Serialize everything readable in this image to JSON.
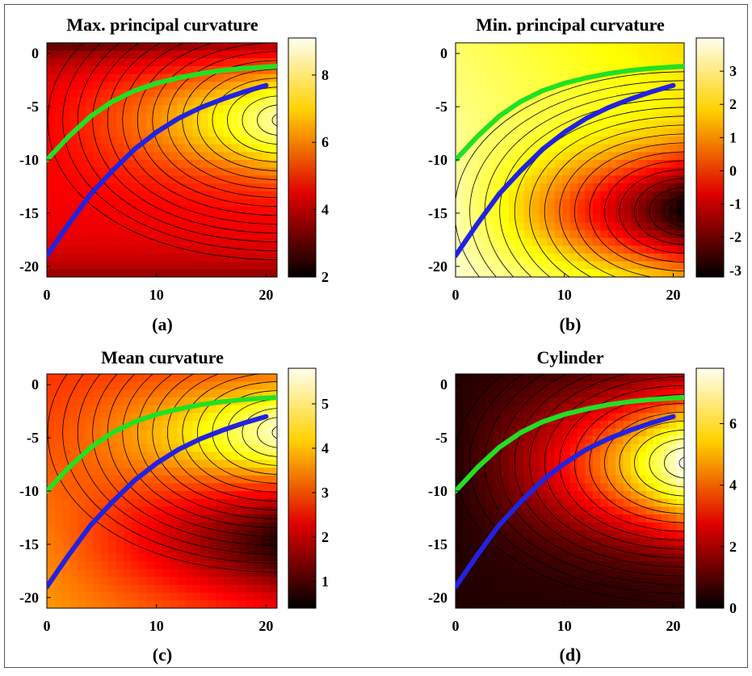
{
  "chart_data": [
    {
      "type": "heatmap",
      "title": "Max. principal curvature",
      "caption": "(a)",
      "xlim": [
        0,
        21
      ],
      "ylim": [
        -21,
        1
      ],
      "xticks": [
        "0",
        "10",
        "20"
      ],
      "yticks": [
        "0",
        "-5",
        "-10",
        "-15",
        "-20"
      ],
      "colorbar": {
        "range": [
          2,
          9.1
        ],
        "ticks": [
          "8",
          "6",
          "4",
          "2"
        ]
      },
      "colormap": "hot",
      "contours": true,
      "series": [
        {
          "color": "#22e022",
          "x": [
            0,
            2,
            4,
            6,
            8,
            10,
            12,
            14,
            16,
            18,
            21
          ],
          "y": [
            -10,
            -7.8,
            -5.9,
            -4.5,
            -3.5,
            -2.8,
            -2.3,
            -1.9,
            -1.6,
            -1.4,
            -1.2
          ]
        },
        {
          "color": "#2222e0",
          "x": [
            0,
            2,
            4,
            6,
            8,
            10,
            12,
            14,
            16,
            18,
            20
          ],
          "y": [
            -19,
            -16,
            -13.2,
            -11,
            -9,
            -7.4,
            -6.1,
            -5.1,
            -4.3,
            -3.6,
            -3
          ]
        }
      ]
    },
    {
      "type": "heatmap",
      "title": "Min. principal curvature",
      "caption": "(b)",
      "xlim": [
        0,
        21
      ],
      "ylim": [
        -21,
        1
      ],
      "xticks": [
        "0",
        "10",
        "20"
      ],
      "yticks": [
        "0",
        "-5",
        "-10",
        "-15",
        "-20"
      ],
      "colorbar": {
        "range": [
          -3.2,
          4
        ],
        "ticks": [
          "3",
          "2",
          "1",
          "0",
          "-1",
          "-2",
          "-3"
        ]
      },
      "colormap": "hot",
      "contours": true,
      "series": [
        {
          "color": "#22e022",
          "x": [
            0,
            2,
            4,
            6,
            8,
            10,
            12,
            14,
            16,
            18,
            21
          ],
          "y": [
            -10,
            -7.8,
            -5.9,
            -4.5,
            -3.5,
            -2.8,
            -2.3,
            -1.9,
            -1.6,
            -1.4,
            -1.2
          ]
        },
        {
          "color": "#2222e0",
          "x": [
            0,
            2,
            4,
            6,
            8,
            10,
            12,
            14,
            16,
            18,
            20
          ],
          "y": [
            -19,
            -16,
            -13.2,
            -11,
            -9,
            -7.4,
            -6.1,
            -5.1,
            -4.3,
            -3.6,
            -3
          ]
        }
      ]
    },
    {
      "type": "heatmap",
      "title": "Mean curvature",
      "caption": "(c)",
      "xlim": [
        0,
        21
      ],
      "ylim": [
        -21,
        1
      ],
      "xticks": [
        "0",
        "10",
        "20"
      ],
      "yticks": [
        "0",
        "-5",
        "-10",
        "-15",
        "-20"
      ],
      "colorbar": {
        "range": [
          0.4,
          5.8
        ],
        "ticks": [
          "5",
          "4",
          "3",
          "2",
          "1"
        ]
      },
      "colormap": "hot",
      "contours": true,
      "series": [
        {
          "color": "#22e022",
          "x": [
            0,
            2,
            4,
            6,
            8,
            10,
            12,
            14,
            16,
            18,
            21
          ],
          "y": [
            -10,
            -7.8,
            -5.9,
            -4.5,
            -3.5,
            -2.8,
            -2.3,
            -1.9,
            -1.6,
            -1.4,
            -1.2
          ]
        },
        {
          "color": "#2222e0",
          "x": [
            0,
            2,
            4,
            6,
            8,
            10,
            12,
            14,
            16,
            18,
            20
          ],
          "y": [
            -19,
            -16,
            -13.2,
            -11,
            -9,
            -7.4,
            -6.1,
            -5.1,
            -4.3,
            -3.6,
            -3
          ]
        }
      ]
    },
    {
      "type": "heatmap",
      "title": "Cylinder",
      "caption": "(d)",
      "xlim": [
        0,
        21
      ],
      "ylim": [
        -21,
        1
      ],
      "xticks": [
        "0",
        "10",
        "20"
      ],
      "yticks": [
        "0",
        "-5",
        "-10",
        "-15",
        "-20"
      ],
      "colorbar": {
        "range": [
          0,
          7.8
        ],
        "ticks": [
          "6",
          "4",
          "2",
          "0"
        ]
      },
      "colormap": "hot",
      "contours": true,
      "series": [
        {
          "color": "#22e022",
          "x": [
            0,
            2,
            4,
            6,
            8,
            10,
            12,
            14,
            16,
            18,
            21
          ],
          "y": [
            -10,
            -7.8,
            -5.9,
            -4.5,
            -3.5,
            -2.8,
            -2.3,
            -1.9,
            -1.6,
            -1.4,
            -1.2
          ]
        },
        {
          "color": "#2222e0",
          "x": [
            0,
            2,
            4,
            6,
            8,
            10,
            12,
            14,
            16,
            18,
            20
          ],
          "y": [
            -19,
            -16,
            -13.2,
            -11,
            -9,
            -7.4,
            -6.1,
            -5.1,
            -4.3,
            -3.6,
            -3
          ]
        }
      ]
    }
  ]
}
